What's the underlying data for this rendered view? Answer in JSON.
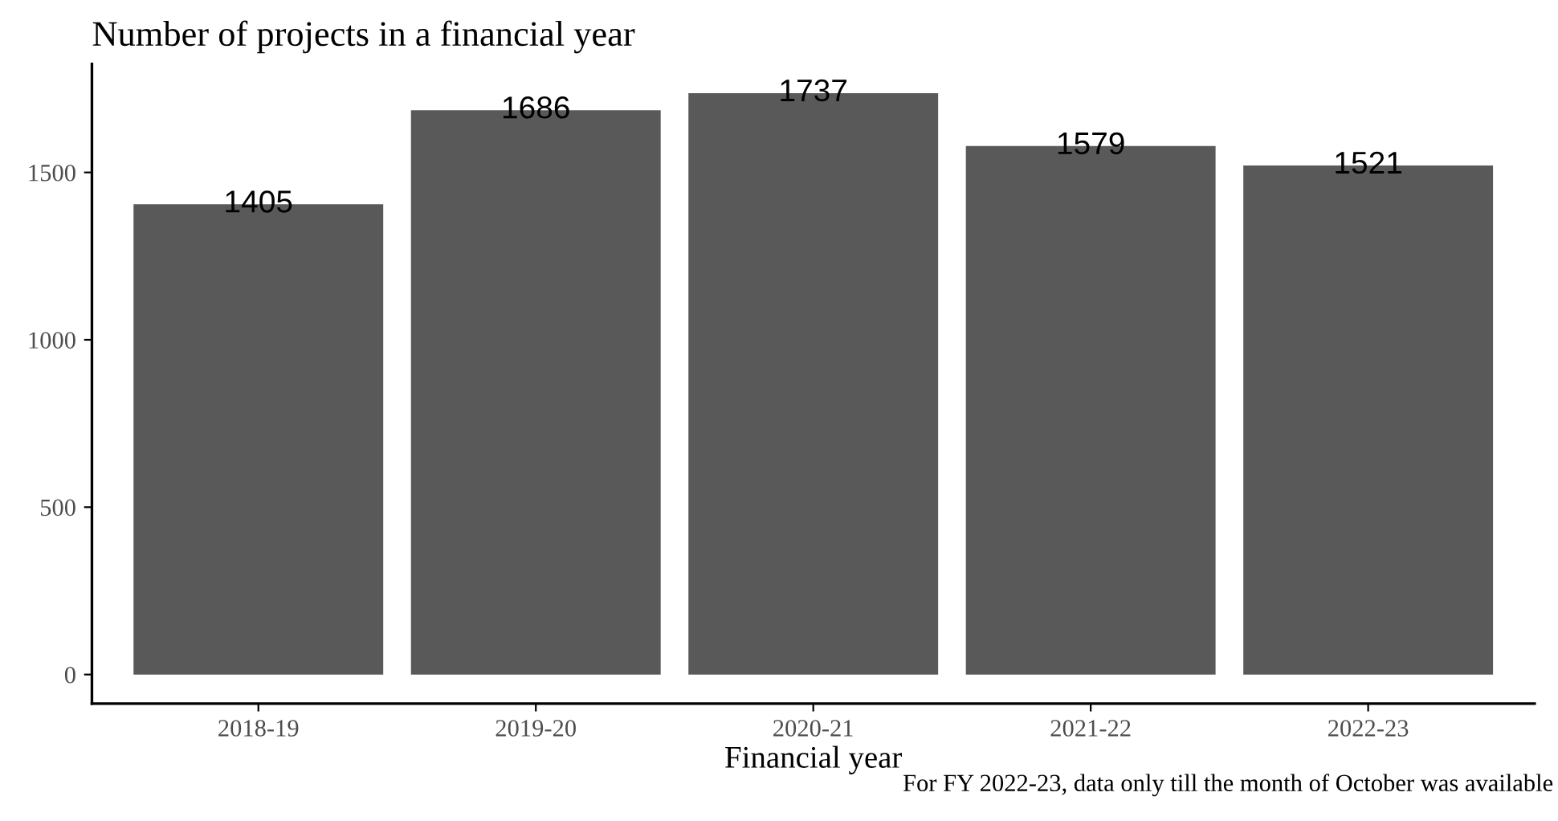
{
  "chart_data": {
    "type": "bar",
    "title": "Number of projects in a financial year",
    "xlabel": "Financial year",
    "categories": [
      "2018-19",
      "2019-20",
      "2020-21",
      "2021-22",
      "2022-23"
    ],
    "values": [
      1405,
      1686,
      1737,
      1579,
      1521
    ],
    "color": "#595959",
    "ylim": [
      -86.85,
      1823.85
    ],
    "yticks": [
      0,
      500,
      1000,
      1500
    ],
    "grid": false,
    "data_labels": true,
    "annotations": [
      "For FY 2022-23, data only till the month of October was available"
    ]
  }
}
